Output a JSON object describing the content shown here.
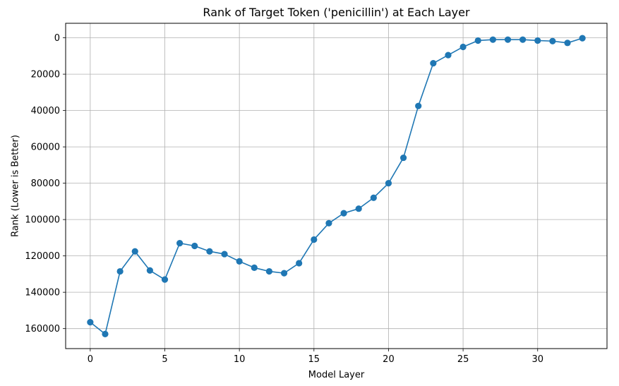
{
  "chart_data": {
    "type": "line",
    "title": "Rank of Target Token ('penicillin') at Each Layer",
    "xlabel": "Model Layer",
    "ylabel": "Rank (Lower is Better)",
    "y_inverted": true,
    "grid": true,
    "xlim": [
      -1.65,
      34.65
    ],
    "ylim": [
      171000,
      -8000
    ],
    "xticks": [
      0,
      5,
      10,
      15,
      20,
      25,
      30
    ],
    "yticks": [
      0,
      20000,
      40000,
      60000,
      80000,
      100000,
      120000,
      140000,
      160000
    ],
    "line_color": "#1f77b4",
    "marker": "circle",
    "x": [
      0,
      1,
      2,
      3,
      4,
      5,
      6,
      7,
      8,
      9,
      10,
      11,
      12,
      13,
      14,
      15,
      16,
      17,
      18,
      19,
      20,
      21,
      22,
      23,
      24,
      25,
      26,
      27,
      28,
      29,
      30,
      31,
      32,
      33
    ],
    "series": [
      {
        "values": [
          156500,
          163000,
          128500,
          117500,
          128000,
          133000,
          113000,
          114500,
          117500,
          119000,
          123000,
          126500,
          128500,
          129500,
          124000,
          111000,
          102000,
          96500,
          94000,
          88000,
          80000,
          66000,
          37500,
          14000,
          9500,
          5000,
          1500,
          1000,
          1000,
          1000,
          1500,
          1800,
          2800,
          200
        ]
      }
    ]
  }
}
